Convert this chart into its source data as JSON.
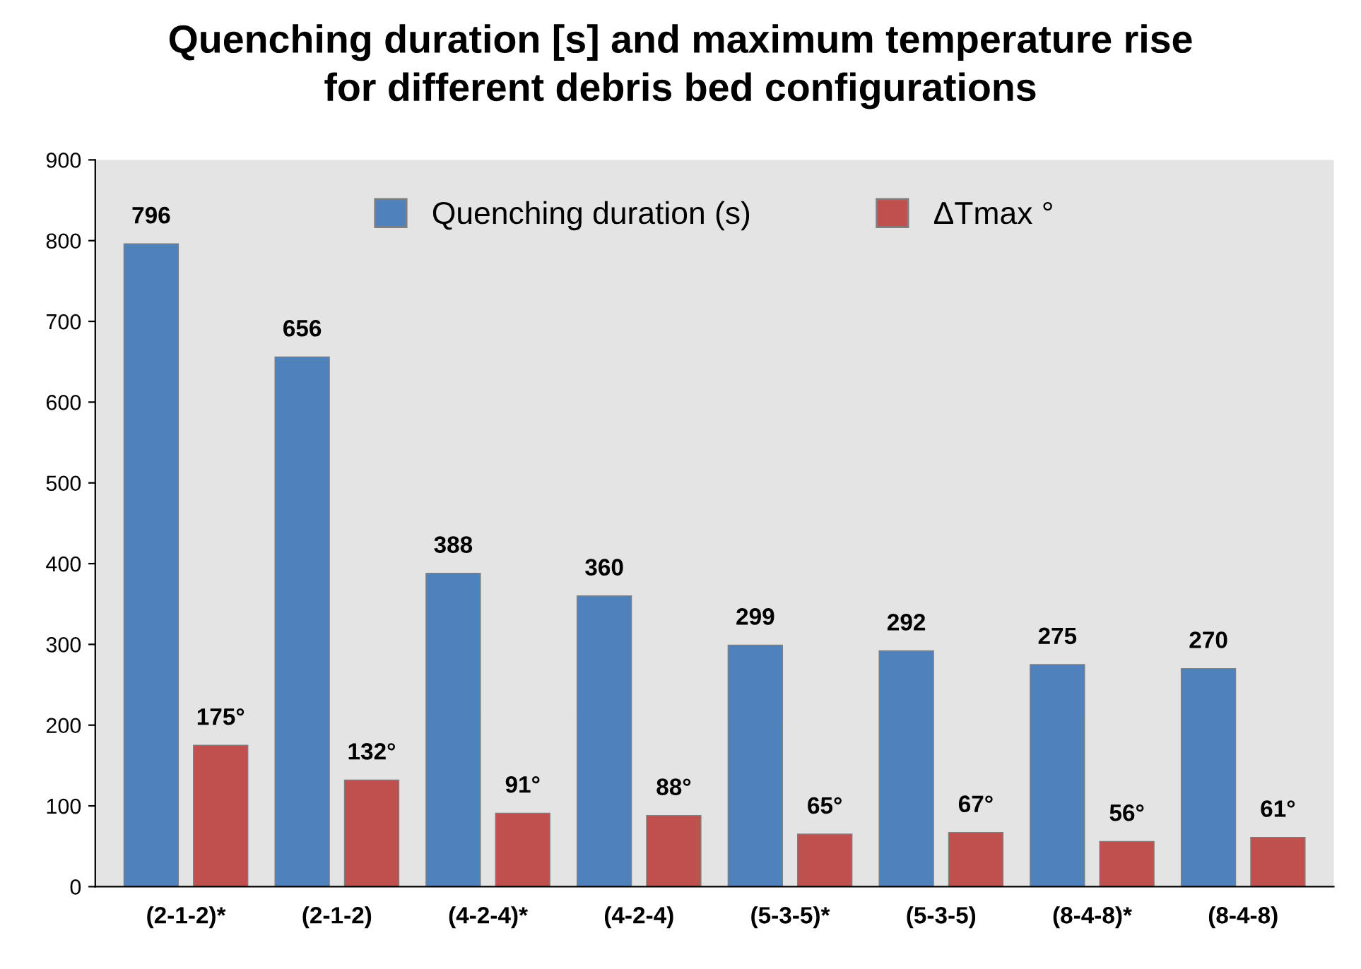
{
  "chart_data": {
    "type": "bar",
    "title": "Quenching duration [s] and maximum temperature rise\nfor different debris bed configurations",
    "categories": [
      "(2-1-2)*",
      "(2-1-2)",
      "(4-2-4)*",
      "(4-2-4)",
      "(5-3-5)*",
      "(5-3-5)",
      "(8-4-8)*",
      "(8-4-8)"
    ],
    "series": [
      {
        "name": "Quenching duration (s)",
        "color": "#4f81bd",
        "values": [
          796,
          656,
          388,
          360,
          299,
          292,
          275,
          270
        ],
        "value_labels": [
          "796",
          "656",
          "388",
          "360",
          "299",
          "292",
          "275",
          "270"
        ]
      },
      {
        "name": "ΔTmax °",
        "color": "#c0504d",
        "values": [
          175,
          132,
          91,
          88,
          65,
          67,
          56,
          61
        ],
        "value_labels": [
          "175°",
          "132°",
          "91°",
          "88°",
          "65°",
          "67°",
          "56°",
          "61°"
        ]
      }
    ],
    "ylim": [
      0,
      900
    ],
    "yticks": [
      0,
      100,
      200,
      300,
      400,
      500,
      600,
      700,
      800,
      900
    ],
    "grid": false,
    "legend": "top"
  }
}
